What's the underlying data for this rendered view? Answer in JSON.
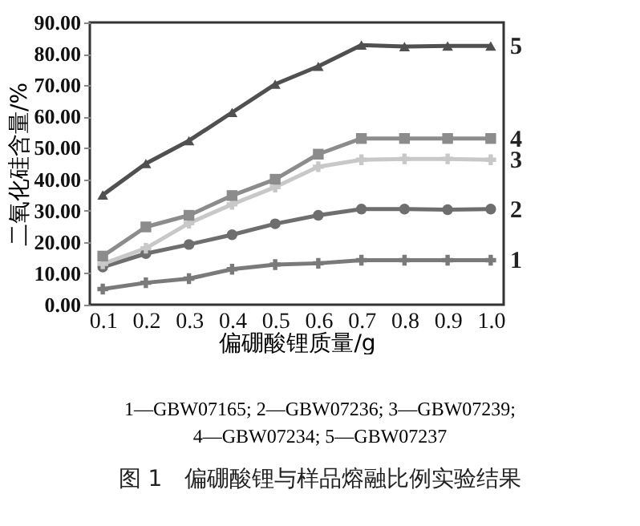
{
  "chart_data": {
    "type": "line",
    "xlabel": "偏硼酸锂质量/g",
    "ylabel": "二氧化硅含量/%",
    "categories": [
      "0.1",
      "0.2",
      "0.3",
      "0.4",
      "0.5",
      "0.6",
      "0.7",
      "0.8",
      "0.9",
      "1.0"
    ],
    "ylim": [
      0,
      90
    ],
    "yticks": [
      {
        "value": 0,
        "label": "0.00"
      },
      {
        "value": 10,
        "label": "10.00"
      },
      {
        "value": 20,
        "label": "20.00"
      },
      {
        "value": 30,
        "label": "30.00"
      },
      {
        "value": 40,
        "label": "40.00"
      },
      {
        "value": 50,
        "label": "50.00"
      },
      {
        "value": 60,
        "label": "60.00"
      },
      {
        "value": 70,
        "label": "70.00"
      },
      {
        "value": 80,
        "label": "80.00"
      },
      {
        "value": 90,
        "label": "90.00"
      }
    ],
    "grid": false,
    "legend": false,
    "series": [
      {
        "name": "1",
        "color": "#7a7a7a",
        "marker": "cross",
        "values": [
          5,
          7,
          8.3,
          11.3,
          12.8,
          13.2,
          14.2,
          14.2,
          14.2,
          14.2
        ]
      },
      {
        "name": "2",
        "color": "#6e6e6e",
        "marker": "circle",
        "values": [
          12,
          16.3,
          19.2,
          22.3,
          25.8,
          28.5,
          30.5,
          30.5,
          30.3,
          30.5
        ]
      },
      {
        "name": "3",
        "color": "#c8c8c8",
        "marker": "cross",
        "values": [
          13,
          18,
          26,
          32,
          37.5,
          44,
          46.2,
          46.5,
          46.5,
          46.2
        ]
      },
      {
        "name": "4",
        "color": "#8c8c8c",
        "marker": "square",
        "values": [
          15.5,
          24.8,
          28.5,
          34.8,
          40,
          48,
          53,
          53,
          53,
          53
        ]
      },
      {
        "name": "5",
        "color": "#505050",
        "marker": "triangle",
        "values": [
          35,
          45,
          52.3,
          61.3,
          70.3,
          76,
          82.8,
          82.3,
          82.5,
          82.5
        ]
      }
    ],
    "annotations": [
      "1—GBW07165; 2—GBW07236; 3—GBW07239;",
      "4—GBW07234; 5—GBW07237",
      "图 1　偏硼酸锂与样品熔融比例实验结果"
    ]
  }
}
